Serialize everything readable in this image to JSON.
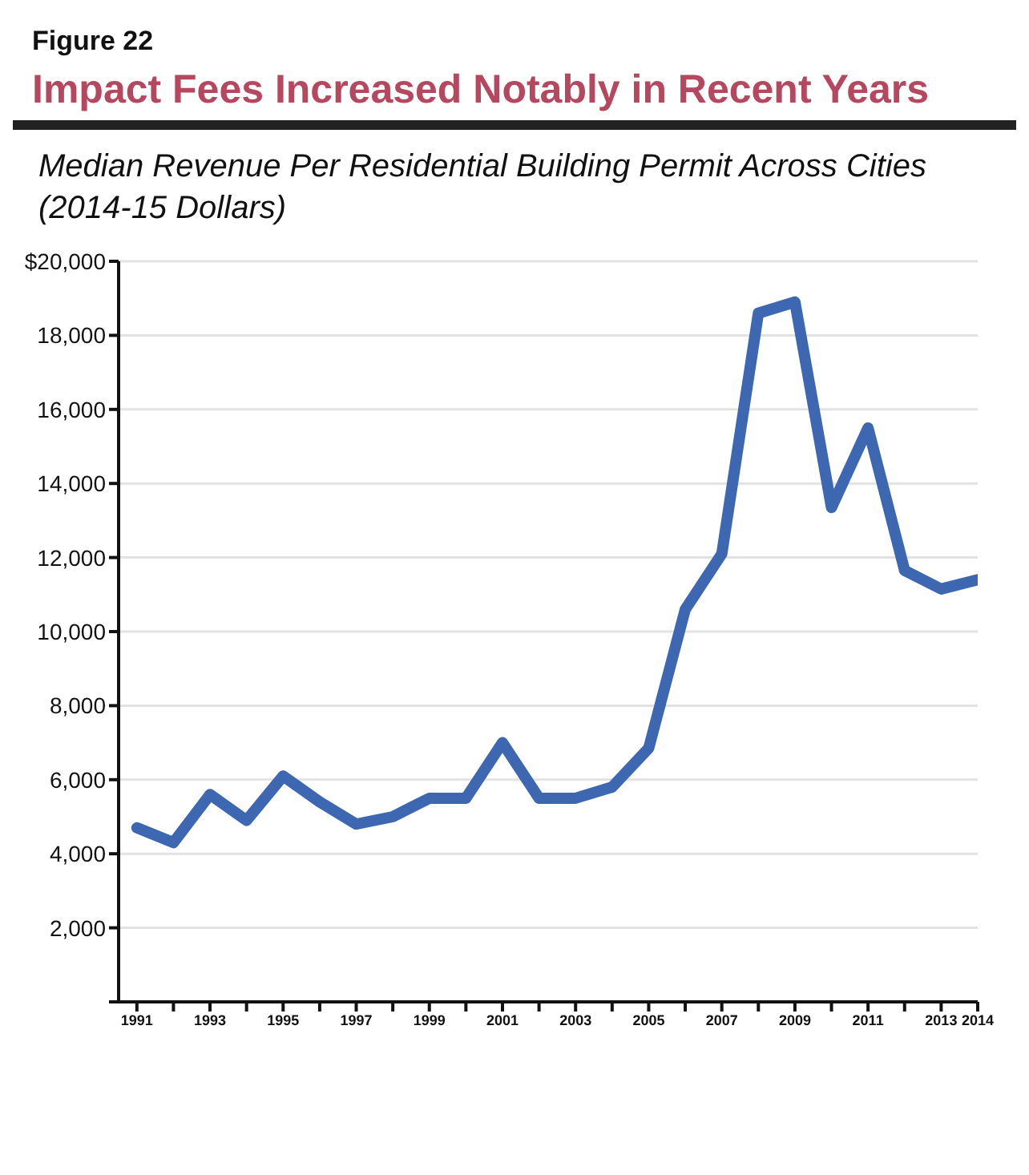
{
  "chart_data": {
    "type": "line",
    "title": "Impact Fees Increased Notably in Recent Years",
    "subtitle": "Median Revenue Per Residential Building Permit Across Cities (2014-15 Dollars)",
    "annotations": [
      "Figure 22"
    ],
    "x": [
      1991,
      1992,
      1993,
      1994,
      1995,
      1996,
      1997,
      1998,
      1999,
      2000,
      2001,
      2002,
      2003,
      2004,
      2005,
      2006,
      2007,
      2008,
      2009,
      2010,
      2011,
      2012,
      2013,
      2014
    ],
    "series": [
      {
        "color": "#3d67b1",
        "values": [
          4700,
          4300,
          5600,
          4900,
          6100,
          5400,
          4800,
          5000,
          5500,
          5500,
          7000,
          5500,
          5500,
          5800,
          6850,
          10600,
          12100,
          18600,
          18900,
          13350,
          15500,
          11650,
          11150,
          11400
        ]
      }
    ],
    "xlim": [
      1990.5,
      2014
    ],
    "xticks": [
      1991,
      {
        "value": 1992,
        "label": null
      },
      1993,
      {
        "value": 1994,
        "label": null
      },
      1995,
      {
        "value": 1996,
        "label": null
      },
      1997,
      {
        "value": 1998,
        "label": null
      },
      1999,
      {
        "value": 2000,
        "label": null
      },
      2001,
      {
        "value": 2002,
        "label": null
      },
      2003,
      {
        "value": 2004,
        "label": null
      },
      2005,
      {
        "value": 2006,
        "label": null
      },
      2007,
      {
        "value": 2008,
        "label": null
      },
      2009,
      {
        "value": 2010,
        "label": null
      },
      2011,
      {
        "value": 2012,
        "label": null
      },
      2013,
      2014
    ],
    "ylim": [
      0,
      20000
    ],
    "yticks": [
      {
        "value": 0,
        "label": null
      },
      {
        "value": 2000,
        "label": "2,000"
      },
      {
        "value": 4000,
        "label": "4,000"
      },
      {
        "value": 6000,
        "label": "6,000"
      },
      {
        "value": 8000,
        "label": "8,000"
      },
      {
        "value": 10000,
        "label": "10,000"
      },
      {
        "value": 12000,
        "label": "12,000"
      },
      {
        "value": 14000,
        "label": "14,000"
      },
      {
        "value": 16000,
        "label": "16,000"
      },
      {
        "value": 18000,
        "label": "18,000"
      },
      {
        "value": 20000,
        "label": "$20,000"
      }
    ],
    "grid": "y",
    "marker": "none",
    "line_style": "solid",
    "legend": false
  }
}
